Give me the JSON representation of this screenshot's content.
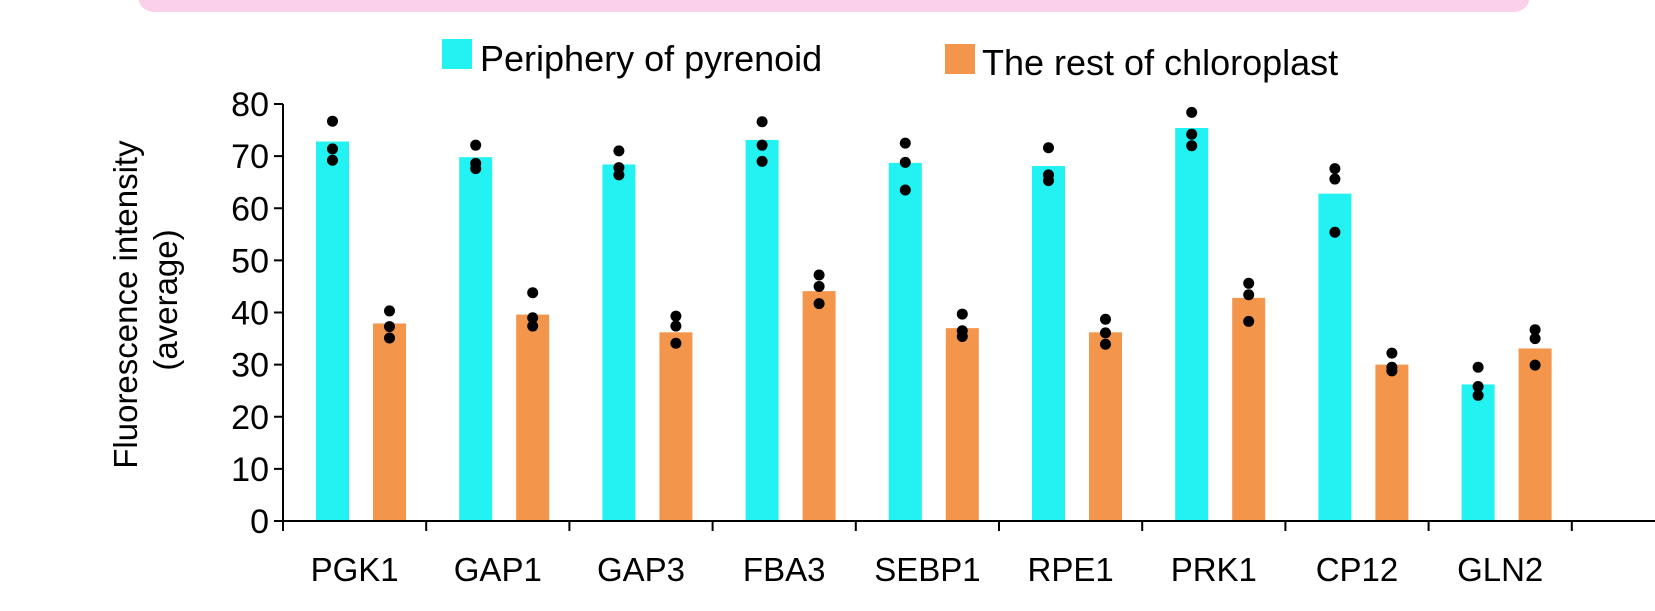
{
  "chart_data": {
    "type": "bar",
    "title": "",
    "ylabel": "Fluorescence intensity\n(average)",
    "xlabel": "",
    "ylim": [
      0,
      80
    ],
    "yticks": [
      0,
      10,
      20,
      30,
      40,
      50,
      60,
      70,
      80
    ],
    "categories": [
      "PGK1",
      "GAP1",
      "GAP3",
      "FBA3",
      "SEBP1",
      "RPE1",
      "PRK1",
      "CP12",
      "GLN2"
    ],
    "legend_position": "top",
    "series": [
      {
        "name": "Periphery of pyrenoid",
        "color": "#22f2f2",
        "values": [
          72.8,
          69.8,
          68.4,
          73.1,
          68.7,
          68.1,
          75.4,
          62.8,
          26.2
        ],
        "points": [
          [
            76.7,
            71.4,
            69.2
          ],
          [
            72.1,
            68.6,
            67.6
          ],
          [
            71.0,
            67.8,
            66.4
          ],
          [
            76.6,
            72.1,
            69.0
          ],
          [
            72.5,
            68.8,
            63.5
          ],
          [
            71.6,
            66.4,
            65.3
          ],
          [
            78.4,
            74.2,
            72.0
          ],
          [
            67.6,
            65.6,
            55.4
          ],
          [
            29.5,
            25.8,
            24.1
          ]
        ]
      },
      {
        "name": "The rest of chloroplast",
        "color": "#f4954c",
        "values": [
          37.9,
          39.6,
          36.2,
          44.1,
          37.0,
          36.2,
          42.8,
          30.0,
          33.1
        ],
        "points": [
          [
            40.3,
            37.3,
            35.1
          ],
          [
            43.8,
            39.0,
            37.4
          ],
          [
            39.3,
            37.4,
            34.1
          ],
          [
            47.2,
            45.0,
            41.7
          ],
          [
            39.7,
            36.5,
            35.4
          ],
          [
            38.7,
            36.1,
            33.9
          ],
          [
            45.6,
            43.4,
            38.3
          ],
          [
            32.2,
            29.5,
            28.8
          ],
          [
            36.7,
            35.0,
            29.9
          ]
        ]
      }
    ]
  }
}
